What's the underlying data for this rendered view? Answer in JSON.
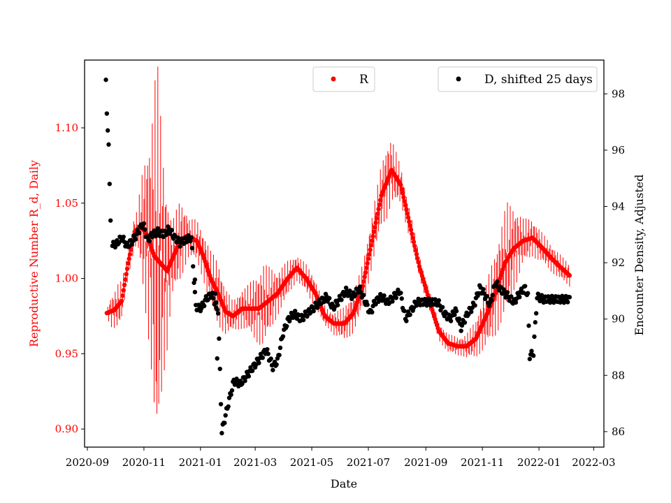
{
  "chart_data": {
    "type": "scatter",
    "xlabel": "Date",
    "ylabel_left": "Reproductive Number R_d, Daily",
    "ylabel_right": "Encounter Density, Adjusted",
    "x_range": [
      "2020-08-29",
      "2022-03-12"
    ],
    "ylim_left": [
      0.888,
      1.145
    ],
    "ylim_right": [
      85.45,
      99.2
    ],
    "x_ticks": [
      "2020-09",
      "2020-11",
      "2021-01",
      "2021-03",
      "2021-05",
      "2021-07",
      "2021-09",
      "2021-11",
      "2022-01",
      "2022-03"
    ],
    "y_ticks_left": [
      "0.90",
      "0.95",
      "1.00",
      "1.05",
      "1.10"
    ],
    "y_ticks_right": [
      "86",
      "88",
      "90",
      "92",
      "94",
      "96",
      "98"
    ],
    "colors": {
      "r_series": "#ff0000",
      "d_series": "#000000",
      "axis": "#000000"
    },
    "legend": [
      {
        "label": "R",
        "color": "#ff0000",
        "position": "top-center"
      },
      {
        "label": "D, shifted 25 days",
        "color": "#000000",
        "position": "top-right"
      }
    ],
    "series": [
      {
        "name": "R",
        "axis": "left",
        "anchors": [
          [
            "2020-09-22",
            0.977
          ],
          [
            "2020-09-30",
            0.979
          ],
          [
            "2020-10-08",
            0.985
          ],
          [
            "2020-10-15",
            1.01
          ],
          [
            "2020-10-22",
            1.031
          ],
          [
            "2020-10-29",
            1.035
          ],
          [
            "2020-11-05",
            1.028
          ],
          [
            "2020-11-12",
            1.015
          ],
          [
            "2020-11-19",
            1.01
          ],
          [
            "2020-11-26",
            1.005
          ],
          [
            "2020-12-03",
            1.015
          ],
          [
            "2020-12-10",
            1.025
          ],
          [
            "2020-12-17",
            1.028
          ],
          [
            "2020-12-28",
            1.025
          ],
          [
            "2021-01-04",
            1.015
          ],
          [
            "2021-01-12",
            1.0
          ],
          [
            "2021-01-20",
            0.99
          ],
          [
            "2021-01-28",
            0.978
          ],
          [
            "2021-02-05",
            0.975
          ],
          [
            "2021-02-15",
            0.98
          ],
          [
            "2021-02-25",
            0.98
          ],
          [
            "2021-03-05",
            0.98
          ],
          [
            "2021-03-15",
            0.985
          ],
          [
            "2021-03-25",
            0.99
          ],
          [
            "2021-04-05",
            1.0
          ],
          [
            "2021-04-15",
            1.007
          ],
          [
            "2021-04-25",
            1.0
          ],
          [
            "2021-05-05",
            0.99
          ],
          [
            "2021-05-15",
            0.975
          ],
          [
            "2021-05-25",
            0.97
          ],
          [
            "2021-06-05",
            0.97
          ],
          [
            "2021-06-15",
            0.977
          ],
          [
            "2021-06-25",
            0.995
          ],
          [
            "2021-07-05",
            1.025
          ],
          [
            "2021-07-15",
            1.055
          ],
          [
            "2021-07-26",
            1.072
          ],
          [
            "2021-08-05",
            1.062
          ],
          [
            "2021-08-15",
            1.035
          ],
          [
            "2021-08-25",
            1.008
          ],
          [
            "2021-09-05",
            0.985
          ],
          [
            "2021-09-15",
            0.965
          ],
          [
            "2021-09-25",
            0.957
          ],
          [
            "2021-10-05",
            0.955
          ],
          [
            "2021-10-15",
            0.955
          ],
          [
            "2021-10-25",
            0.96
          ],
          [
            "2021-11-05",
            0.975
          ],
          [
            "2021-11-15",
            0.99
          ],
          [
            "2021-11-25",
            1.01
          ],
          [
            "2021-12-05",
            1.02
          ],
          [
            "2021-12-15",
            1.025
          ],
          [
            "2021-12-25",
            1.027
          ],
          [
            "2022-01-05",
            1.02
          ],
          [
            "2022-01-15",
            1.013
          ],
          [
            "2022-01-25",
            1.007
          ],
          [
            "2022-02-03",
            1.002
          ]
        ],
        "bands": [
          [
            "2020-09-22",
            0.002
          ],
          [
            "2020-09-26",
            0.008
          ],
          [
            "2020-10-05",
            0.012
          ],
          [
            "2020-10-15",
            0.007
          ],
          [
            "2020-10-25",
            0.01
          ],
          [
            "2020-11-02",
            0.04
          ],
          [
            "2020-11-08",
            0.06
          ],
          [
            "2020-11-15",
            0.11
          ],
          [
            "2020-11-22",
            0.06
          ],
          [
            "2020-12-01",
            0.02
          ],
          [
            "2020-12-10",
            0.022
          ],
          [
            "2020-12-20",
            0.01
          ],
          [
            "2021-01-01",
            0.012
          ],
          [
            "2021-01-20",
            0.017
          ],
          [
            "2021-02-05",
            0.008
          ],
          [
            "2021-02-20",
            0.012
          ],
          [
            "2021-03-10",
            0.022
          ],
          [
            "2021-03-25",
            0.012
          ],
          [
            "2021-04-15",
            0.007
          ],
          [
            "2021-05-01",
            0.008
          ],
          [
            "2021-05-20",
            0.005
          ],
          [
            "2021-06-10",
            0.01
          ],
          [
            "2021-06-25",
            0.012
          ],
          [
            "2021-07-10",
            0.015
          ],
          [
            "2021-07-22",
            0.02
          ],
          [
            "2021-08-05",
            0.01
          ],
          [
            "2021-08-25",
            0.006
          ],
          [
            "2021-09-15",
            0.005
          ],
          [
            "2021-10-10",
            0.005
          ],
          [
            "2021-10-25",
            0.01
          ],
          [
            "2021-11-10",
            0.02
          ],
          [
            "2021-11-28",
            0.03
          ],
          [
            "2021-12-15",
            0.012
          ],
          [
            "2022-01-05",
            0.008
          ],
          [
            "2022-02-03",
            0.006
          ]
        ]
      },
      {
        "name": "D, shifted 25 days",
        "axis": "right",
        "outliers": [
          [
            "2020-09-21",
            98.5
          ],
          [
            "2020-09-22",
            97.3
          ],
          [
            "2020-09-23",
            96.7
          ],
          [
            "2020-09-24",
            96.2
          ],
          [
            "2020-09-25",
            94.8
          ],
          [
            "2020-09-26",
            93.5
          ],
          [
            "2020-12-26",
            91.4
          ],
          [
            "2021-01-17",
            90.9
          ],
          [
            "2021-01-18",
            90.4
          ],
          [
            "2021-01-19",
            88.6
          ]
        ],
        "anchors": [
          [
            "2020-09-28",
            92.6
          ],
          [
            "2020-10-03",
            92.7
          ],
          [
            "2020-10-08",
            92.9
          ],
          [
            "2020-10-14",
            92.6
          ],
          [
            "2020-10-20",
            92.8
          ],
          [
            "2020-10-26",
            93.1
          ],
          [
            "2020-10-31",
            93.4
          ],
          [
            "2020-11-05",
            92.8
          ],
          [
            "2020-11-10",
            93.0
          ],
          [
            "2020-11-16",
            93.1
          ],
          [
            "2020-11-22",
            93.0
          ],
          [
            "2020-11-28",
            93.2
          ],
          [
            "2020-12-04",
            92.9
          ],
          [
            "2020-12-10",
            92.7
          ],
          [
            "2020-12-15",
            92.8
          ],
          [
            "2020-12-22",
            92.9
          ],
          [
            "2020-12-27",
            90.4
          ],
          [
            "2021-01-02",
            90.4
          ],
          [
            "2021-01-07",
            90.7
          ],
          [
            "2021-01-13",
            90.9
          ],
          [
            "2021-01-20",
            90.3
          ],
          [
            "2021-01-24",
            86.0
          ],
          [
            "2021-01-31",
            87.0
          ],
          [
            "2021-02-06",
            87.8
          ],
          [
            "2021-02-13",
            87.7
          ],
          [
            "2021-02-20",
            88.0
          ],
          [
            "2021-02-27",
            88.3
          ],
          [
            "2021-03-06",
            88.6
          ],
          [
            "2021-03-13",
            88.9
          ],
          [
            "2021-03-20",
            88.3
          ],
          [
            "2021-03-25",
            88.5
          ],
          [
            "2021-03-31",
            89.5
          ],
          [
            "2021-04-06",
            90.0
          ],
          [
            "2021-04-12",
            90.2
          ],
          [
            "2021-04-19",
            90.0
          ],
          [
            "2021-04-26",
            90.2
          ],
          [
            "2021-05-03",
            90.4
          ],
          [
            "2021-05-10",
            90.6
          ],
          [
            "2021-05-17",
            90.8
          ],
          [
            "2021-05-24",
            90.4
          ],
          [
            "2021-05-31",
            90.7
          ],
          [
            "2021-06-07",
            91.0
          ],
          [
            "2021-06-14",
            90.8
          ],
          [
            "2021-06-21",
            91.1
          ],
          [
            "2021-06-28",
            90.6
          ],
          [
            "2021-07-03",
            90.2
          ],
          [
            "2021-07-08",
            90.6
          ],
          [
            "2021-07-15",
            90.8
          ],
          [
            "2021-07-22",
            90.6
          ],
          [
            "2021-07-29",
            90.8
          ],
          [
            "2021-08-04",
            91.0
          ],
          [
            "2021-08-10",
            90.0
          ],
          [
            "2021-08-16",
            90.3
          ],
          [
            "2021-08-22",
            90.6
          ],
          [
            "2021-08-30",
            90.6
          ],
          [
            "2021-09-07",
            90.6
          ],
          [
            "2021-09-14",
            90.6
          ],
          [
            "2021-09-21",
            90.2
          ],
          [
            "2021-09-27",
            90.0
          ],
          [
            "2021-10-03",
            90.3
          ],
          [
            "2021-10-09",
            89.7
          ],
          [
            "2021-10-16",
            90.2
          ],
          [
            "2021-10-23",
            90.5
          ],
          [
            "2021-10-29",
            91.1
          ],
          [
            "2021-11-03",
            90.9
          ],
          [
            "2021-11-09",
            90.5
          ],
          [
            "2021-11-15",
            91.3
          ],
          [
            "2021-11-22",
            91.0
          ],
          [
            "2021-11-29",
            90.8
          ],
          [
            "2021-12-05",
            90.6
          ],
          [
            "2021-12-11",
            90.9
          ],
          [
            "2021-12-17",
            91.1
          ],
          [
            "2021-12-20",
            90.8
          ],
          [
            "2021-12-22",
            88.7
          ],
          [
            "2021-12-26",
            88.8
          ],
          [
            "2021-12-30",
            90.8
          ],
          [
            "2022-01-06",
            90.7
          ],
          [
            "2022-01-20",
            90.7
          ],
          [
            "2022-02-03",
            90.7
          ]
        ]
      }
    ]
  }
}
